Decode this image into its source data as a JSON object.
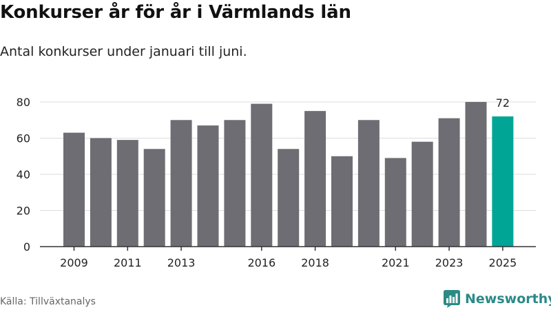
{
  "title": "Konkurser år för år i Värmlands län",
  "subtitle": "Antal konkurser under januari till juni.",
  "source": "Källa: Tillväxtanalys",
  "brand": {
    "name": "Newsworthy",
    "logo_icon": "newsworthy-chart-logo-icon",
    "color": "#2a8a86"
  },
  "colors": {
    "bar": "#6e6d73",
    "highlight": "#00a596",
    "grid": "#dcdcdc",
    "axis": "#333333"
  },
  "chart_data": {
    "type": "bar",
    "categories": [
      "2009",
      "2010",
      "2011",
      "2012",
      "2013",
      "2014",
      "2015",
      "2016",
      "2017",
      "2018",
      "2019",
      "2020",
      "2021",
      "2022",
      "2023",
      "2024",
      "2025"
    ],
    "values": [
      63,
      60,
      59,
      54,
      70,
      67,
      70,
      79,
      54,
      75,
      50,
      70,
      49,
      58,
      71,
      80,
      72
    ],
    "tick_labels_x": [
      "2009",
      "2011",
      "2013",
      "2016",
      "2018",
      "2021",
      "2023",
      "2025"
    ],
    "y_ticks": [
      0,
      20,
      40,
      60,
      80
    ],
    "ylim": [
      0,
      80
    ],
    "highlight": {
      "category": "2025",
      "label": "72"
    },
    "grid": true,
    "xlabel": "",
    "ylabel": ""
  }
}
